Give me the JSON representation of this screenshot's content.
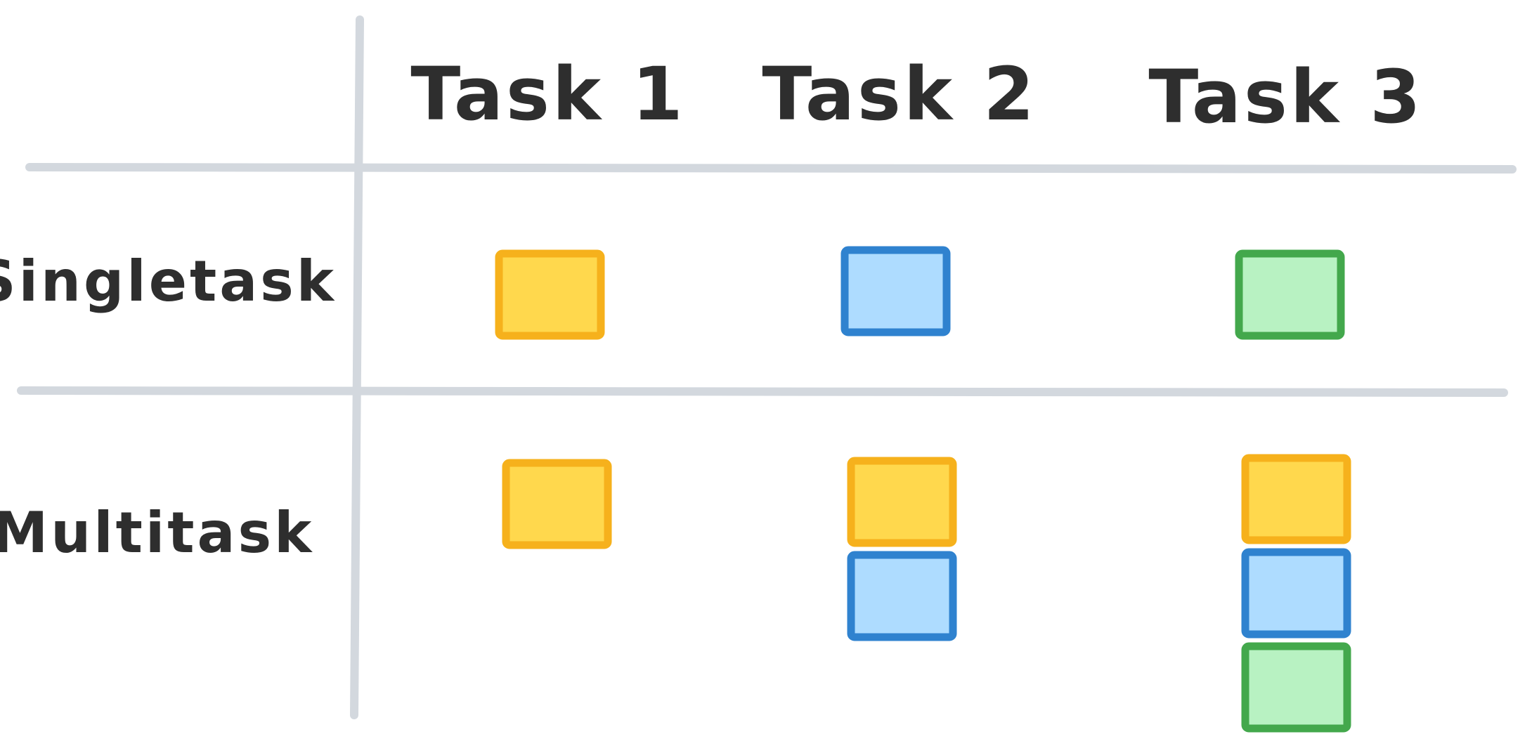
{
  "columns": [
    "Task 1",
    "Task 2",
    "Task 3"
  ],
  "rows": [
    "Singletask",
    "Multitask"
  ],
  "colors": {
    "yellow": {
      "stroke": "#f6b11c",
      "fill": "#ffd84d"
    },
    "blue": {
      "stroke": "#2f82cf",
      "fill": "#aedcff"
    },
    "green": {
      "stroke": "#43a84c",
      "fill": "#b8f2c2"
    },
    "grid": "#d3d8de",
    "text": "#2e2e2e"
  },
  "cells": {
    "singletask": [
      [
        "yellow"
      ],
      [
        "blue"
      ],
      [
        "green"
      ]
    ],
    "multitask": [
      [
        "yellow"
      ],
      [
        "yellow",
        "blue"
      ],
      [
        "yellow",
        "blue",
        "green"
      ]
    ]
  }
}
